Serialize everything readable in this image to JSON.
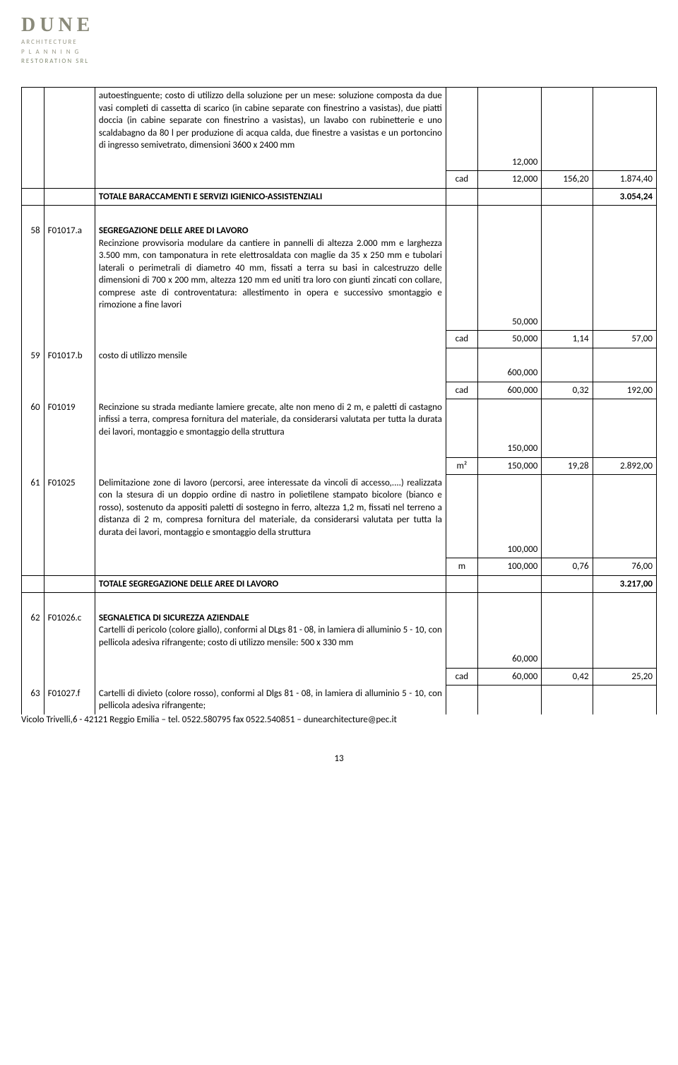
{
  "logo": {
    "title": "DUNE",
    "line1": "ARCHITECTURE",
    "line2": "P L A N N I N G",
    "line3": "RESTORATION SRL"
  },
  "intro": {
    "desc": "autoestinguente; costo di utilizzo della soluzione per un mese: soluzione composta da due vasi completi di cassetta di scarico (in cabine separate con finestrino a vasistas), due piatti doccia (in cabine separate con finestrino a vasistas), un lavabo con rubinetterie e uno scaldabagno da 80 l per produzione di acqua calda, due finestre a vasistas e un portoncino di ingresso semivetrato, dimensioni 3600 x 2400 mm",
    "qty1": "12,000",
    "unit": "cad",
    "qty2": "12,000",
    "price": "156,20",
    "amount": "1.874,40",
    "total_label": "TOTALE BARACCAMENTI E SERVIZI IGIENICO-ASSISTENZIALI",
    "total_amount": "3.054,24"
  },
  "sec1": {
    "title": "SEGREGAZIONE DELLE AREE DI LAVORO",
    "r58": {
      "n": "58",
      "code": "F01017.a",
      "desc": "Recinzione provvisoria modulare da cantiere in pannelli di altezza 2.000 mm e larghezza 3.500 mm, con tamponatura in rete elettrosaldata con maglie da 35 x 250 mm e tubolari laterali o perimetrali di diametro 40 mm, fissati a terra su basi in calcestruzzo delle dimensioni di 700 x 200 mm, altezza 120 mm ed uniti tra loro con giunti zincati con collare, comprese aste di controventatura: allestimento in opera e successivo smontaggio e rimozione a fine lavori",
      "q1": "50,000",
      "u": "cad",
      "q2": "50,000",
      "p": "1,14",
      "a": "57,00"
    },
    "r59": {
      "n": "59",
      "code": "F01017.b",
      "desc": "costo di utilizzo mensile",
      "q1": "600,000",
      "u": "cad",
      "q2": "600,000",
      "p": "0,32",
      "a": "192,00"
    },
    "r60": {
      "n": "60",
      "code": "F01019",
      "desc": "Recinzione su strada mediante lamiere grecate, alte non meno di 2 m, e paletti di castagno infissi a terra, compresa fornitura del materiale, da considerarsi valutata per tutta la durata dei lavori, montaggio e smontaggio della struttura",
      "q1": "150,000",
      "u": "m²",
      "q2": "150,000",
      "p": "19,28",
      "a": "2.892,00"
    },
    "r61": {
      "n": "61",
      "code": "F01025",
      "desc": "Delimitazione zone di lavoro (percorsi, aree interessate da vincoli di accesso,....) realizzata con la stesura di un doppio ordine di nastro in polietilene stampato bicolore (bianco e rosso), sostenuto da appositi paletti di sostegno in ferro, altezza 1,2 m, fissati nel terreno a distanza di 2 m, compresa fornitura del materiale, da considerarsi valutata per tutta la durata dei lavori, montaggio e smontaggio della struttura",
      "q1": "100,000",
      "u": "m",
      "q2": "100,000",
      "p": "0,76",
      "a": "76,00"
    },
    "total_label": "TOTALE SEGREGAZIONE DELLE AREE DI LAVORO",
    "total_amount": "3.217,00"
  },
  "sec2": {
    "title": "SEGNALETICA DI SICUREZZA AZIENDALE",
    "r62": {
      "n": "62",
      "code": "F01026.c",
      "desc": "Cartelli di pericolo (colore giallo), conformi al DLgs 81 - 08, in lamiera di alluminio 5 - 10, con pellicola adesiva rifrangente; costo di utilizzo mensile: 500 x 330 mm",
      "q1": "60,000",
      "u": "cad",
      "q2": "60,000",
      "p": "0,42",
      "a": "25,20"
    },
    "r63": {
      "n": "63",
      "code": "F01027.f",
      "desc": "Cartelli di divieto (colore rosso), conformi al Dlgs 81 - 08, in lamiera di alluminio 5 - 10, con pellicola adesiva rifrangente;"
    }
  },
  "footer": "Vicolo Trivelli,6 - 42121 Reggio Emilia – tel. 0522.580795 fax 0522.540851 – dunearchitecture@pec.it",
  "pagenum": "13"
}
